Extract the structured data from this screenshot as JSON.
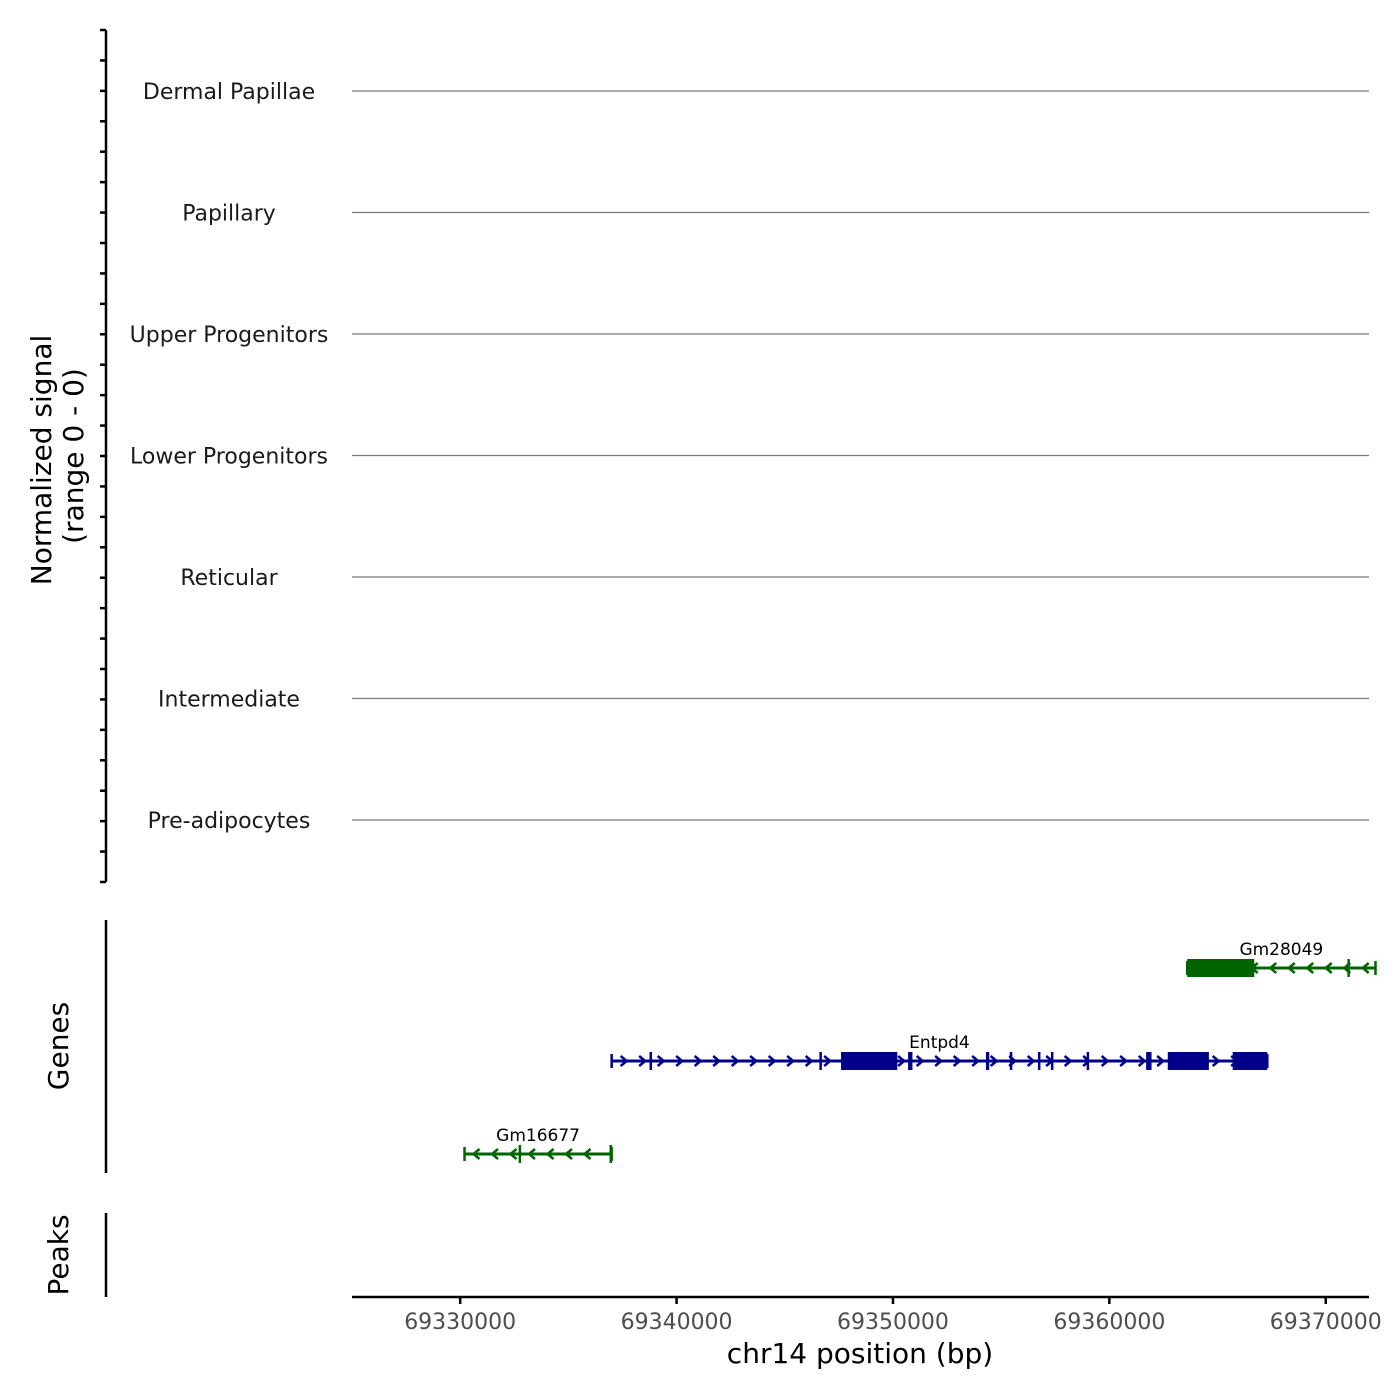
{
  "chart_data": {
    "type": "genome-browser",
    "chromosome": "chr14",
    "xlabel": "chr14 position (bp)",
    "xlim": [
      69325000,
      69372000
    ],
    "xticks": [
      69330000,
      69340000,
      69350000,
      69360000,
      69370000
    ],
    "coverage": {
      "ylabel": "Normalized signal",
      "ylabel_range": "(range 0 - 0)",
      "tracks": [
        {
          "label": "Dermal Papillae",
          "values": [
            0
          ]
        },
        {
          "label": "Papillary",
          "values": [
            0
          ]
        },
        {
          "label": "Upper Progenitors",
          "values": [
            0
          ]
        },
        {
          "label": "Lower Progenitors",
          "values": [
            0
          ]
        },
        {
          "label": "Reticular",
          "values": [
            0
          ]
        },
        {
          "label": "Intermediate",
          "values": [
            0
          ]
        },
        {
          "label": "Pre-adipocytes",
          "values": [
            0
          ]
        }
      ]
    },
    "genes": {
      "ylabel": "Genes",
      "items": [
        {
          "name": "Gm28049",
          "strand": "-",
          "row": 1,
          "color": "#006400",
          "start": 69363600,
          "end": 69372300,
          "exons": [
            [
              69363600,
              69366700
            ],
            [
              69371000,
              69371100
            ]
          ]
        },
        {
          "name": "Entpd4",
          "strand": "+",
          "row": 2,
          "color": "#00008b",
          "start": 69337000,
          "end": 69367300,
          "exons": [
            [
              69338750,
              69338850
            ],
            [
              69346600,
              69346700
            ],
            [
              69347600,
              69350200
            ],
            [
              69350700,
              69350900
            ],
            [
              69354300,
              69354450
            ],
            [
              69355400,
              69355500
            ],
            [
              69356700,
              69356800
            ],
            [
              69357300,
              69357400
            ],
            [
              69358950,
              69359050
            ],
            [
              69361700,
              69361950
            ],
            [
              69362700,
              69364600
            ],
            [
              69365700,
              69367300
            ]
          ]
        },
        {
          "name": "Gm16677",
          "strand": "-",
          "row": 3,
          "color": "#006400",
          "start": 69330200,
          "end": 69337000,
          "exons": [
            [
              69332700,
              69332800
            ],
            [
              69336900,
              69337000
            ]
          ]
        }
      ]
    },
    "peaks": {
      "ylabel": "Peaks",
      "items": []
    }
  }
}
